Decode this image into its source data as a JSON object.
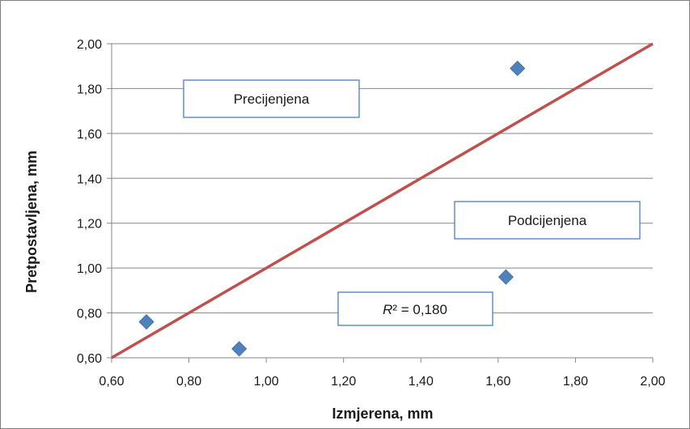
{
  "chart_data": {
    "type": "scatter",
    "xlabel": "Izmjerena, mm",
    "ylabel": "Pretpostavljena, mm",
    "xlim": [
      0.6,
      2.0
    ],
    "ylim": [
      0.6,
      2.0
    ],
    "x_ticks": [
      "0,60",
      "0,80",
      "1,00",
      "1,20",
      "1,40",
      "1,60",
      "1,80",
      "2,00"
    ],
    "y_ticks": [
      "0,60",
      "0,80",
      "1,00",
      "1,20",
      "1,40",
      "1,60",
      "1,80",
      "2,00"
    ],
    "grid": "horizontal",
    "series": [
      {
        "marker": "diamond",
        "color": "#4f81bd",
        "points": [
          {
            "x": 0.69,
            "y": 0.76
          },
          {
            "x": 0.93,
            "y": 0.64
          },
          {
            "x": 1.62,
            "y": 0.96
          },
          {
            "x": 1.65,
            "y": 1.89
          }
        ]
      }
    ],
    "reference_line": {
      "x": [
        0.6,
        2.0
      ],
      "y": [
        0.6,
        2.0
      ],
      "color": "#c0504d"
    },
    "annotations": {
      "over": "Precijenjena",
      "under": "Podcijenjena",
      "r2_symbol": "R",
      "r2_value": "² = 0,180"
    }
  }
}
